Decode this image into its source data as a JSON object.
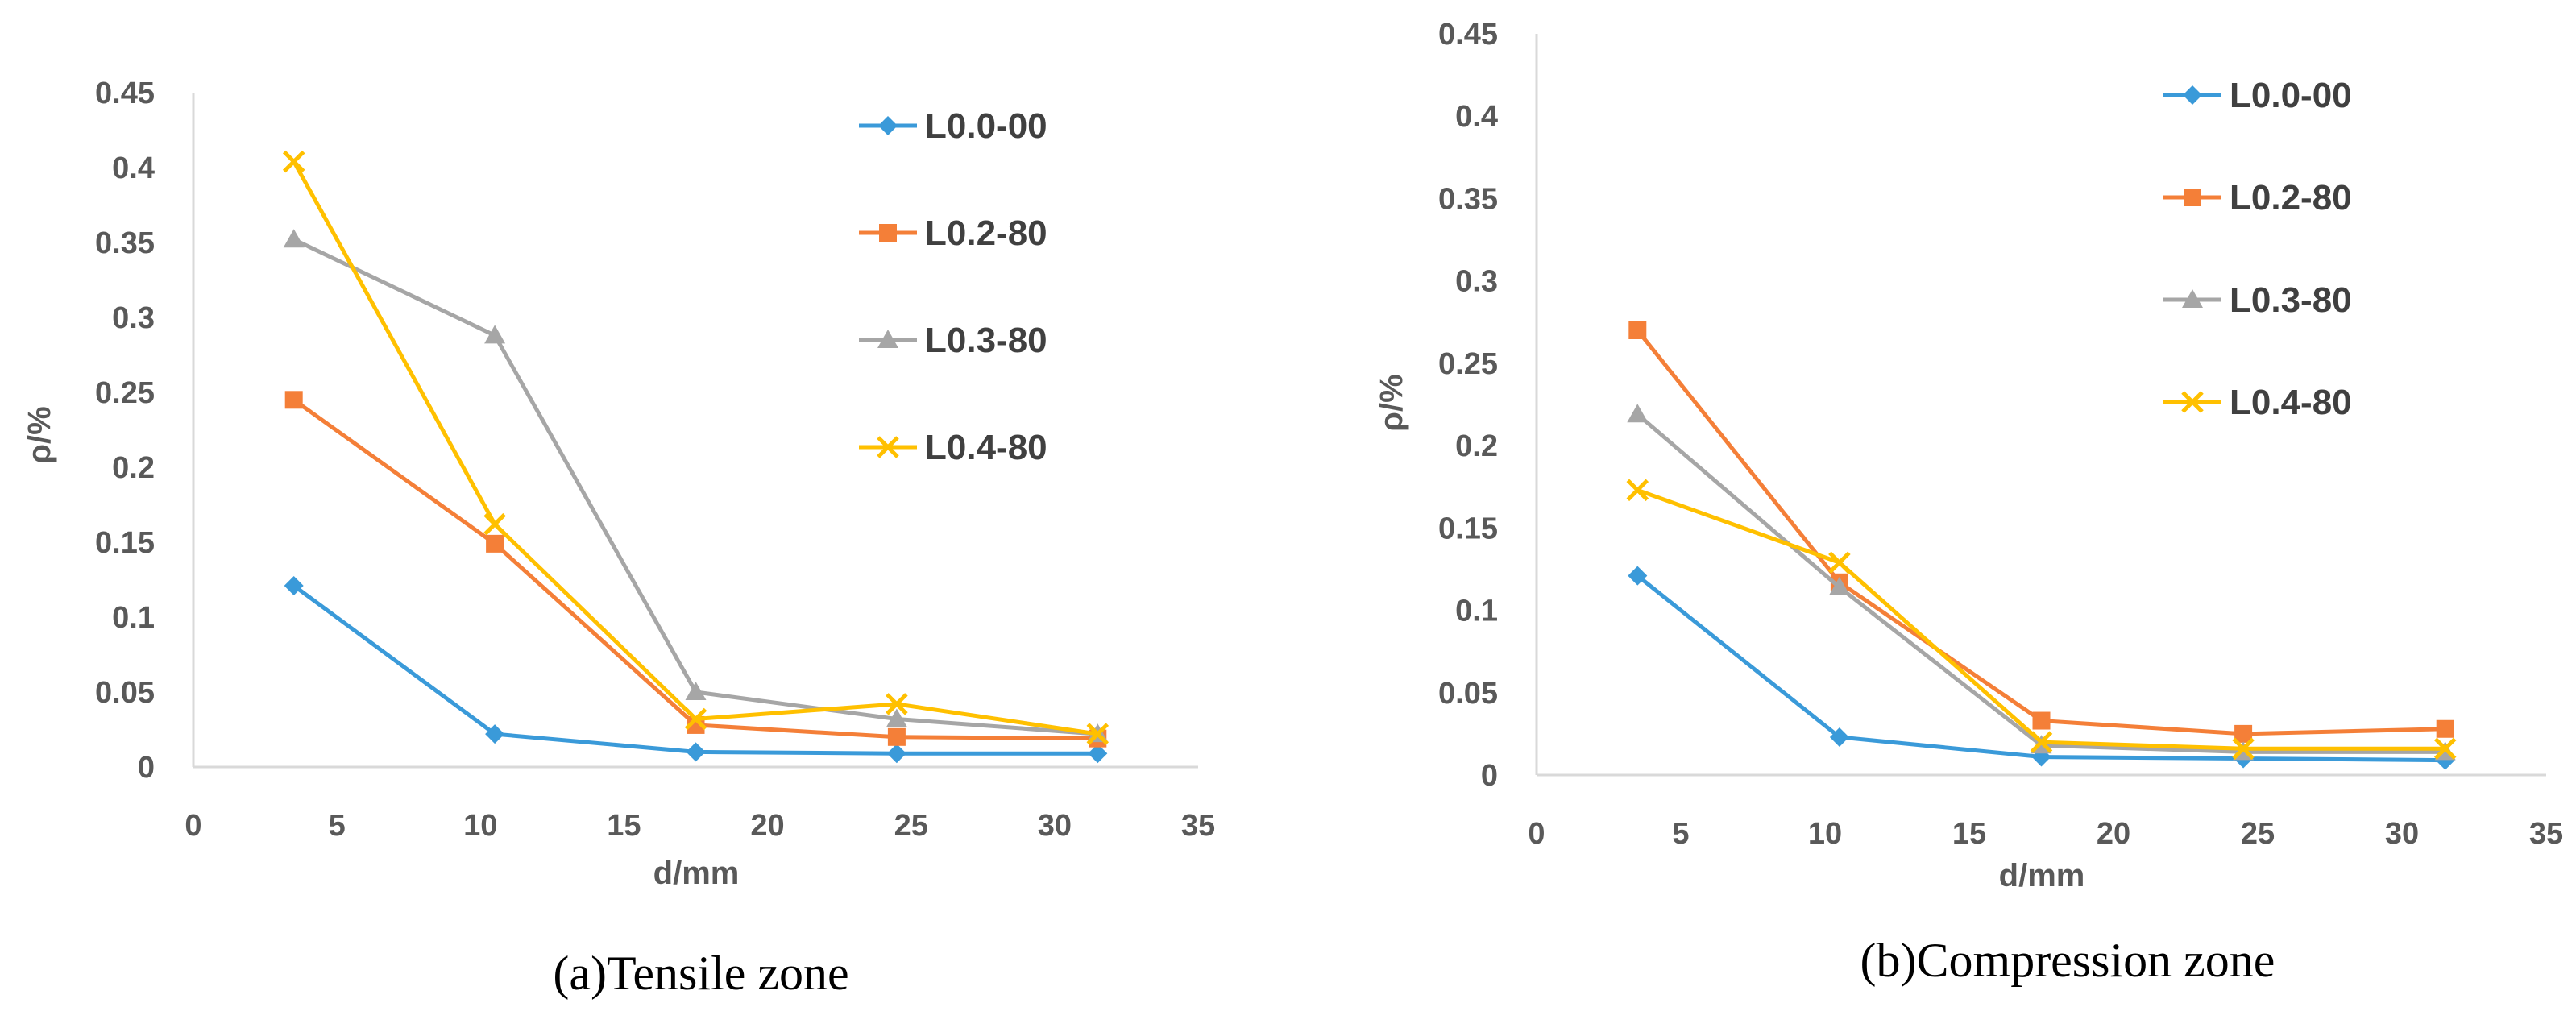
{
  "chart_data": [
    {
      "type": "line",
      "caption": "(a)Tensile zone",
      "xlabel": "d/mm",
      "ylabel": "ρ/%",
      "xlim": [
        0,
        35
      ],
      "ylim": [
        0,
        0.45
      ],
      "x_ticks": [
        0,
        5,
        10,
        15,
        20,
        25,
        30,
        35
      ],
      "y_ticks": [
        0,
        0.05,
        0.1,
        0.15,
        0.2,
        0.25,
        0.3,
        0.35,
        0.4,
        0.45
      ],
      "x_tick_labels": [
        "0",
        "5",
        "10",
        "15",
        "20",
        "25",
        "30",
        "35"
      ],
      "y_tick_labels": [
        "0",
        "0.05",
        "0.1",
        "0.15",
        "0.2",
        "0.25",
        "0.3",
        "0.35",
        "0.4",
        "0.45"
      ],
      "x": [
        3.5,
        10.5,
        17.5,
        24.5,
        31.5
      ],
      "legend_position": "top-right",
      "series": [
        {
          "name": "L0.0-00",
          "color": "#3a9ad9",
          "marker": "diamond",
          "values": [
            0.121,
            0.022,
            0.01,
            0.009,
            0.009
          ]
        },
        {
          "name": "L0.2-80",
          "color": "#f47f38",
          "marker": "square",
          "values": [
            0.245,
            0.149,
            0.028,
            0.02,
            0.019
          ]
        },
        {
          "name": "L0.3-80",
          "color": "#a6a6a6",
          "marker": "triangle",
          "values": [
            0.352,
            0.288,
            0.05,
            0.032,
            0.022
          ]
        },
        {
          "name": "L0.4-80",
          "color": "#ffc000",
          "marker": "cross",
          "values": [
            0.404,
            0.162,
            0.032,
            0.042,
            0.022
          ]
        }
      ]
    },
    {
      "type": "line",
      "caption": "(b)Compression zone",
      "xlabel": "d/mm",
      "ylabel": "ρ/%",
      "xlim": [
        0,
        35
      ],
      "ylim": [
        0,
        0.45
      ],
      "x_ticks": [
        0,
        5,
        10,
        15,
        20,
        25,
        30,
        35
      ],
      "y_ticks": [
        0,
        0.05,
        0.1,
        0.15,
        0.2,
        0.25,
        0.3,
        0.35,
        0.4,
        0.45
      ],
      "x_tick_labels": [
        "0",
        "5",
        "10",
        "15",
        "20",
        "25",
        "30",
        "35"
      ],
      "y_tick_labels": [
        "0",
        "0.05",
        "0.1",
        "0.15",
        "0.2",
        "0.25",
        "0.3",
        "0.35",
        "0.4",
        "0.45"
      ],
      "x": [
        3.5,
        10.5,
        17.5,
        24.5,
        31.5
      ],
      "legend_position": "top-right",
      "series": [
        {
          "name": "L0.0-00",
          "color": "#3a9ad9",
          "marker": "diamond",
          "values": [
            0.121,
            0.023,
            0.011,
            0.01,
            0.009
          ]
        },
        {
          "name": "L0.2-80",
          "color": "#f47f38",
          "marker": "square",
          "values": [
            0.27,
            0.117,
            0.033,
            0.025,
            0.028
          ]
        },
        {
          "name": "L0.3-80",
          "color": "#a6a6a6",
          "marker": "triangle",
          "values": [
            0.219,
            0.114,
            0.018,
            0.014,
            0.014
          ]
        },
        {
          "name": "L0.4-80",
          "color": "#ffc000",
          "marker": "cross",
          "values": [
            0.173,
            0.129,
            0.02,
            0.016,
            0.016
          ]
        }
      ]
    }
  ]
}
